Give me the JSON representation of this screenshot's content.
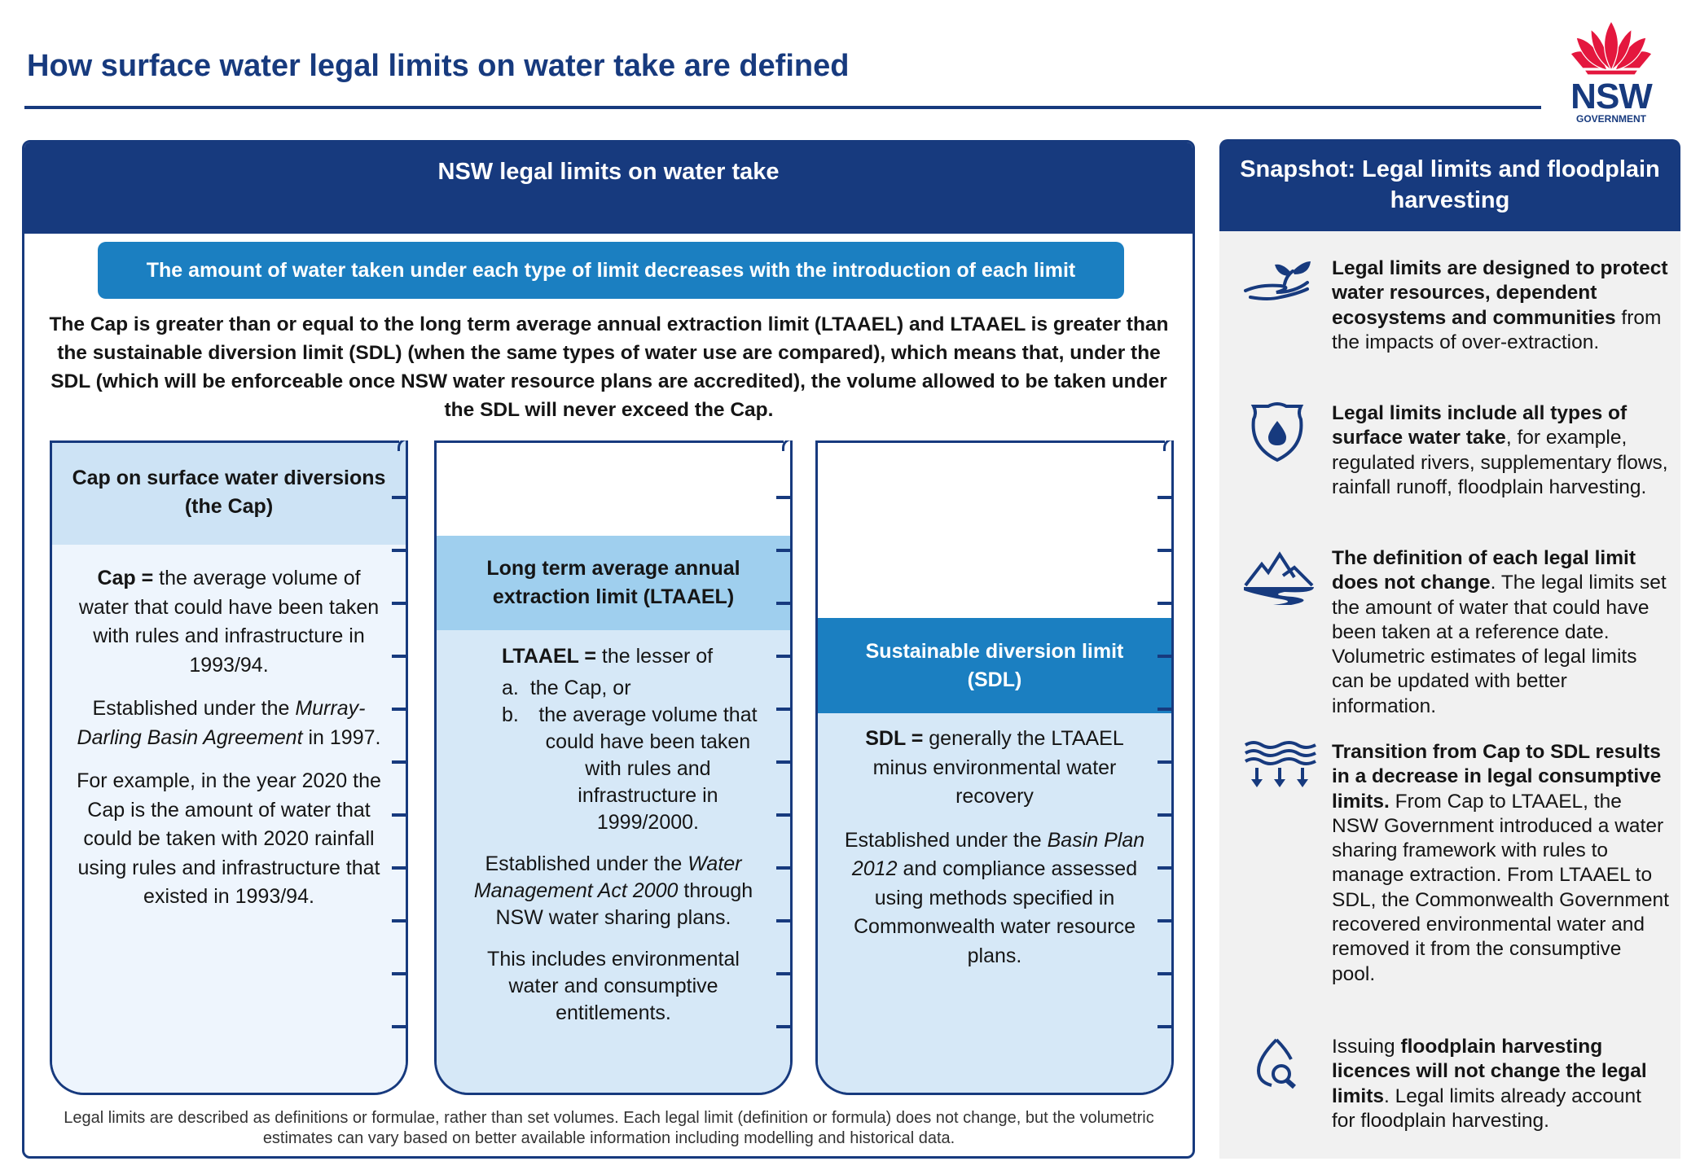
{
  "header": {
    "title": "How surface water legal limits on water take are defined",
    "logo": {
      "name": "NSW",
      "sub": "GOVERNMENT"
    }
  },
  "main": {
    "heading": "NSW legal limits on water take",
    "banner": "The amount of water taken under each type of limit decreases with the introduction of each limit",
    "intro": "The Cap is greater than or equal to the long term average annual extraction limit (LTAAEL) and LTAAEL is greater than the sustainable diversion limit (SDL) (when the same types of water use are compared), which means that, under the SDL (which will be enforceable once NSW water resource plans are accredited), the volume allowed to be taken under the SDL will never exceed the Cap.",
    "columns": [
      {
        "title": "Cap on surface water diversions (the Cap)",
        "def_term": "Cap =",
        "def_text": " the average volume of water that could have been taken with rules and infrastructure in 1993/94.",
        "est_pre": "Established under the ",
        "est_italic": "Murray-Darling Basin Agreement",
        "est_post": " in 1997.",
        "extra": "For example, in the year 2020 the Cap is the amount of water that could be taken with 2020 rainfall using rules and infrastructure that existed in 1993/94."
      },
      {
        "title": "Long term average annual extraction limit (LTAAEL)",
        "def_term": "LTAAEL =",
        "def_text": " the lesser of",
        "list": [
          {
            "marker": "a.",
            "text": "the Cap, or"
          },
          {
            "marker": "b.",
            "text": "the average volume that could have been taken with rules and infrastructure in 1999/2000."
          }
        ],
        "est_pre": "Established under the ",
        "est_italic": "Water Management Act 2000",
        "est_post": " through NSW water sharing plans.",
        "extra": "This includes environmental water and consumptive entitlements."
      },
      {
        "title": "Sustainable diversion limit (SDL)",
        "def_term": "SDL =",
        "def_text": " generally the LTAAEL minus environmental water recovery",
        "est_pre": "Established under the ",
        "est_italic": "Basin Plan 2012",
        "est_post": " and compliance assessed using methods specified in Commonwealth water resource plans."
      }
    ],
    "footnote": "Legal limits are described as definitions or formulae, rather than set volumes. Each legal limit (definition or formula) does not change, but the volumetric estimates can vary based on better available information including modelling and historical data."
  },
  "snapshot": {
    "heading": "Snapshot: Legal limits and floodplain harvesting",
    "items": [
      {
        "icon": "hand-plant-icon",
        "pre": "",
        "bold": "Legal limits are designed to protect water resources, dependent ecosystems and communities",
        "post": " from the impacts of over-extraction."
      },
      {
        "icon": "shield-water-drop-icon",
        "pre": "",
        "bold": "Legal limits include all types of surface water take",
        "post": ", for example, regulated rivers, supplementary flows, rainfall runoff, floodplain harvesting."
      },
      {
        "icon": "mountains-river-icon",
        "pre": "",
        "bold": "The definition of each legal limit does not change",
        "post": ". The legal limits set the amount of water that could have been taken at a reference date. Volumetric estimates of legal limits can be updated with better information."
      },
      {
        "icon": "water-waves-down-arrows-icon",
        "pre": "",
        "bold": "Transition from Cap to SDL results in a decrease in legal consumptive limits.",
        "post": " From Cap to LTAAEL, the NSW Government introduced a water sharing framework with rules to manage extraction. From LTAAEL to SDL, the Commonwealth Government recovered environmental water and removed it from the consumptive pool."
      },
      {
        "icon": "water-drop-magnifier-icon",
        "pre": "Issuing ",
        "bold": "floodplain harvesting licences will not change the legal limits",
        "post": ". Legal limits already account for floodplain harvesting."
      }
    ]
  },
  "colors": {
    "navy": "#173a7e",
    "blue": "#1b7fc1",
    "light_blue": "#9fcfee",
    "pale_blue": "#d6e8f7",
    "cap_header": "#cde3f5",
    "red": "#e4173e"
  }
}
